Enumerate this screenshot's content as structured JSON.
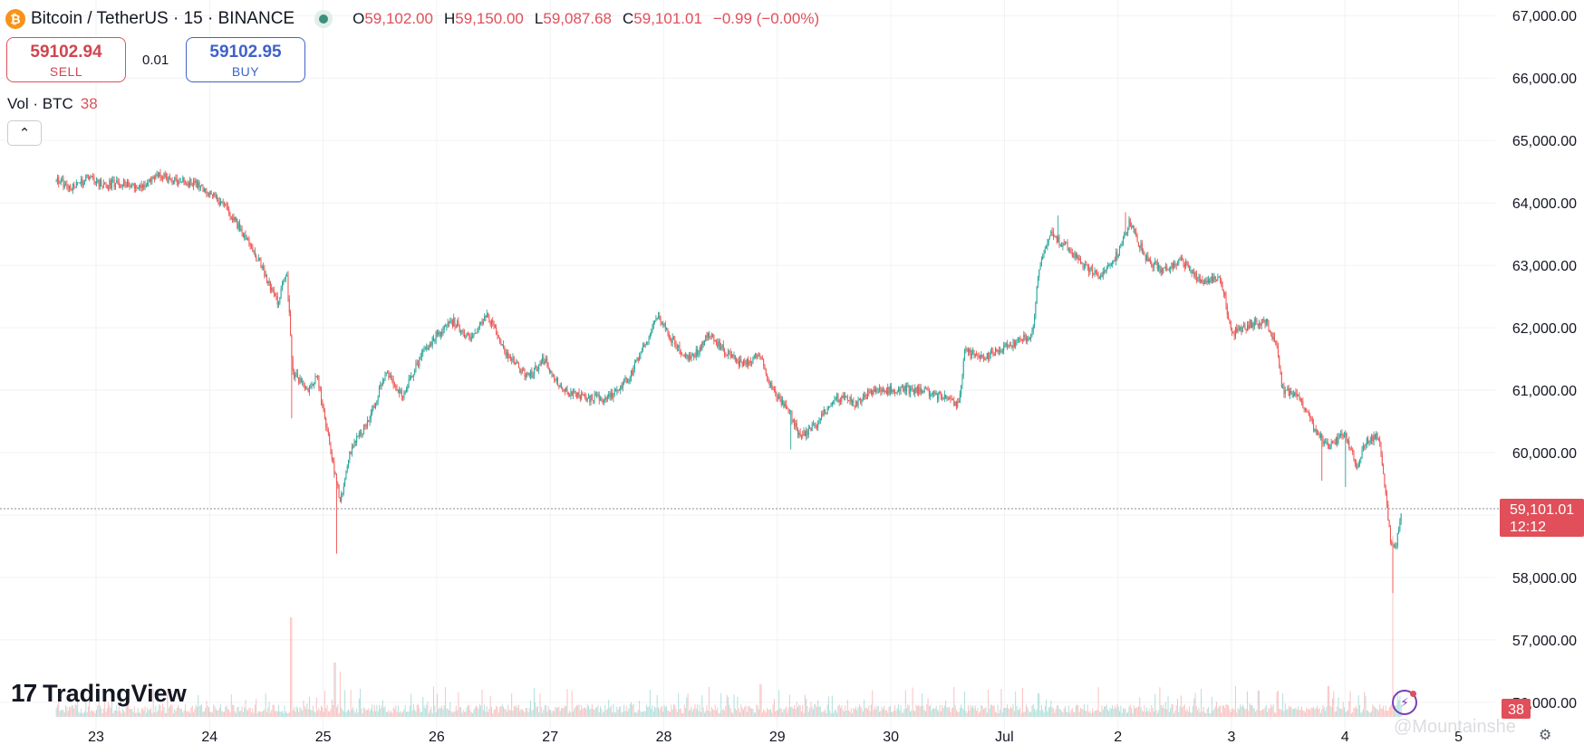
{
  "header": {
    "symbol": "Bitcoin / TetherUS · 15 · BINANCE",
    "ohlc": [
      {
        "key": "O",
        "value": "59,102.00"
      },
      {
        "key": "H",
        "value": "59,150.00"
      },
      {
        "key": "L",
        "value": "59,087.68"
      },
      {
        "key": "C",
        "value": "59,101.01"
      }
    ],
    "change": "−0.99 (−0.00%)",
    "up_color": "#26a69a",
    "down_color": "#ef5350"
  },
  "trade": {
    "sell_price": "59102.94",
    "sell_label": "SELL",
    "spread": "0.01",
    "buy_price": "59102.95",
    "buy_label": "BUY"
  },
  "volume_legend": {
    "label": "Vol · BTC",
    "value": "38"
  },
  "branding": {
    "logo_text": "TradingView",
    "watermark": "@Mountainshe"
  },
  "price_tag": {
    "price": "59,101.01",
    "countdown": "12:12"
  },
  "volume_tag": "38",
  "chart_data": {
    "type": "candlestick",
    "interval_minutes": 15,
    "y_axis_ticks": [
      67000,
      66000,
      65000,
      64000,
      63000,
      62000,
      61000,
      60000,
      59000,
      58000,
      57000,
      56000
    ],
    "y_axis_labels": [
      "67,000.00",
      "66,000.00",
      "65,000.00",
      "64,000.00",
      "63,000.00",
      "62,000.00",
      "61,000.00",
      "60,000.00",
      "59,000.00",
      "58,000.00",
      "57,000.00",
      "56,000.00"
    ],
    "ylim": [
      55650,
      67250
    ],
    "x_axis_labels": [
      "23",
      "24",
      "25",
      "26",
      "27",
      "28",
      "29",
      "30",
      "Jul",
      "2",
      "3",
      "4",
      "5"
    ],
    "last_price": 59101.01,
    "price_path": [
      {
        "day": 22.65,
        "price": 64350
      },
      {
        "day": 22.8,
        "price": 64250
      },
      {
        "day": 22.95,
        "price": 64430
      },
      {
        "day": 23.0,
        "price": 64300
      },
      {
        "day": 23.4,
        "price": 64300
      },
      {
        "day": 23.55,
        "price": 64420
      },
      {
        "day": 23.9,
        "price": 64300
      },
      {
        "day": 24.05,
        "price": 64100
      },
      {
        "day": 24.15,
        "price": 63900
      },
      {
        "day": 24.3,
        "price": 63500
      },
      {
        "day": 24.45,
        "price": 63000
      },
      {
        "day": 24.6,
        "price": 62400
      },
      {
        "day": 24.68,
        "price": 62900
      },
      {
        "day": 24.73,
        "price": 61300
      },
      {
        "day": 24.85,
        "price": 61000
      },
      {
        "day": 24.95,
        "price": 61200
      },
      {
        "day": 25.05,
        "price": 60200
      },
      {
        "day": 25.15,
        "price": 59200
      },
      {
        "day": 25.25,
        "price": 60100
      },
      {
        "day": 25.4,
        "price": 60500
      },
      {
        "day": 25.55,
        "price": 61300
      },
      {
        "day": 25.7,
        "price": 60900
      },
      {
        "day": 25.85,
        "price": 61500
      },
      {
        "day": 26.0,
        "price": 61900
      },
      {
        "day": 26.15,
        "price": 62100
      },
      {
        "day": 26.3,
        "price": 61800
      },
      {
        "day": 26.45,
        "price": 62200
      },
      {
        "day": 26.6,
        "price": 61600
      },
      {
        "day": 26.8,
        "price": 61200
      },
      {
        "day": 26.95,
        "price": 61500
      },
      {
        "day": 27.1,
        "price": 61000
      },
      {
        "day": 27.25,
        "price": 60900
      },
      {
        "day": 27.5,
        "price": 60850
      },
      {
        "day": 27.7,
        "price": 61200
      },
      {
        "day": 27.85,
        "price": 61800
      },
      {
        "day": 27.95,
        "price": 62200
      },
      {
        "day": 28.1,
        "price": 61700
      },
      {
        "day": 28.25,
        "price": 61500
      },
      {
        "day": 28.4,
        "price": 61900
      },
      {
        "day": 28.55,
        "price": 61600
      },
      {
        "day": 28.7,
        "price": 61400
      },
      {
        "day": 28.85,
        "price": 61600
      },
      {
        "day": 28.95,
        "price": 61000
      },
      {
        "day": 29.1,
        "price": 60700
      },
      {
        "day": 29.2,
        "price": 60250
      },
      {
        "day": 29.35,
        "price": 60450
      },
      {
        "day": 29.5,
        "price": 60900
      },
      {
        "day": 29.7,
        "price": 60800
      },
      {
        "day": 29.85,
        "price": 61000
      },
      {
        "day": 30.0,
        "price": 61000
      },
      {
        "day": 30.3,
        "price": 61000
      },
      {
        "day": 30.5,
        "price": 60850
      },
      {
        "day": 30.6,
        "price": 60750
      },
      {
        "day": 30.65,
        "price": 61600
      },
      {
        "day": 30.85,
        "price": 61550
      },
      {
        "day": 31.0,
        "price": 61700
      },
      {
        "day": 31.15,
        "price": 61800
      },
      {
        "day": 31.25,
        "price": 61900
      },
      {
        "day": 31.3,
        "price": 62900
      },
      {
        "day": 31.4,
        "price": 63500
      },
      {
        "day": 31.55,
        "price": 63300
      },
      {
        "day": 31.7,
        "price": 63000
      },
      {
        "day": 31.85,
        "price": 62800
      },
      {
        "day": 32.0,
        "price": 63200
      },
      {
        "day": 32.1,
        "price": 63700
      },
      {
        "day": 32.25,
        "price": 63100
      },
      {
        "day": 32.4,
        "price": 62900
      },
      {
        "day": 32.55,
        "price": 63100
      },
      {
        "day": 32.75,
        "price": 62700
      },
      {
        "day": 32.9,
        "price": 62800
      },
      {
        "day": 32.95,
        "price": 62400
      },
      {
        "day": 33.0,
        "price": 61900
      },
      {
        "day": 33.15,
        "price": 62050
      },
      {
        "day": 33.3,
        "price": 62100
      },
      {
        "day": 33.4,
        "price": 61700
      },
      {
        "day": 33.45,
        "price": 61000
      },
      {
        "day": 33.6,
        "price": 60900
      },
      {
        "day": 33.75,
        "price": 60300
      },
      {
        "day": 33.85,
        "price": 60100
      },
      {
        "day": 34.0,
        "price": 60300
      },
      {
        "day": 34.1,
        "price": 59800
      },
      {
        "day": 34.2,
        "price": 60200
      },
      {
        "day": 34.3,
        "price": 60250
      },
      {
        "day": 34.4,
        "price": 58600
      },
      {
        "day": 34.45,
        "price": 58500
      },
      {
        "day": 34.5,
        "price": 59100
      }
    ],
    "extreme_wicks": [
      {
        "day": 24.72,
        "low": 60550
      },
      {
        "day": 25.12,
        "low": 58380
      },
      {
        "day": 29.12,
        "low": 60050
      },
      {
        "day": 31.47,
        "high": 63800
      },
      {
        "day": 32.07,
        "high": 63850
      },
      {
        "day": 33.8,
        "low": 59550
      },
      {
        "day": 34.0,
        "low": 59450
      },
      {
        "day": 34.42,
        "low": 57750
      }
    ],
    "volume_spikes": [
      {
        "day": 24.72,
        "rel": 0.55
      },
      {
        "day": 25.1,
        "rel": 0.3
      },
      {
        "day": 25.15,
        "rel": 0.25
      },
      {
        "day": 28.85,
        "rel": 0.18
      },
      {
        "day": 30.65,
        "rel": 0.14
      },
      {
        "day": 31.3,
        "rel": 0.13
      },
      {
        "day": 33.45,
        "rel": 0.13
      },
      {
        "day": 33.85,
        "rel": 0.17
      },
      {
        "day": 34.42,
        "rel": 1.0
      }
    ]
  }
}
